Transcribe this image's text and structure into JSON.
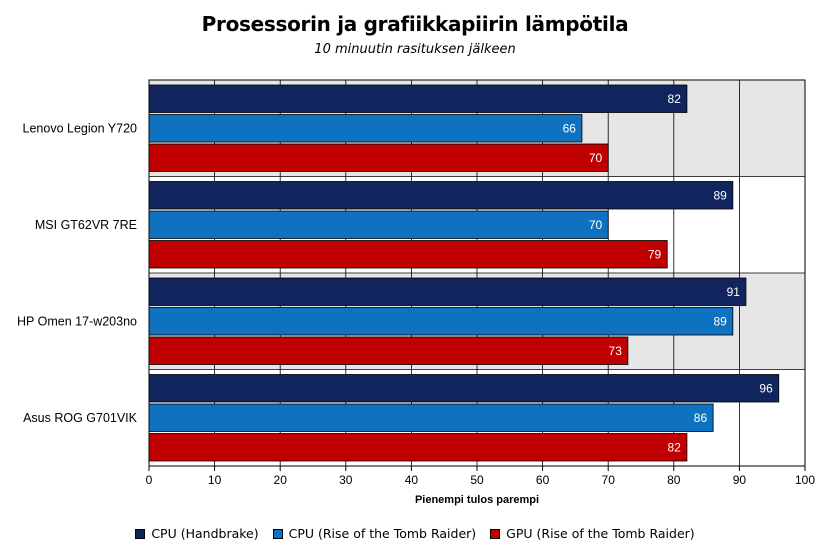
{
  "chart_data": {
    "type": "bar",
    "orientation": "horizontal",
    "title": "Prosessorin ja grafiikkapiirin lämpötila",
    "subtitle": "10 minuutin rasituksen jälkeen",
    "xlabel": "Pienempi tulos parempi",
    "xlim": [
      0,
      100
    ],
    "x_ticks": [
      0,
      10,
      20,
      30,
      40,
      50,
      60,
      70,
      80,
      90,
      100
    ],
    "grid": true,
    "legend_position": "bottom",
    "categories": [
      "Lenovo Legion Y720",
      "MSI GT62VR 7RE",
      "HP Omen 17-w203no",
      "Asus ROG G701VIK"
    ],
    "series": [
      {
        "name": "CPU (Handbrake)",
        "color": "#10255e",
        "values": [
          82,
          89,
          91,
          96
        ]
      },
      {
        "name": "CPU (Rise of the Tomb Raider)",
        "color": "#0f72c0",
        "values": [
          66,
          70,
          89,
          86
        ]
      },
      {
        "name": "GPU (Rise of the Tomb Raider)",
        "color": "#c00000",
        "values": [
          70,
          79,
          73,
          82
        ]
      }
    ]
  }
}
